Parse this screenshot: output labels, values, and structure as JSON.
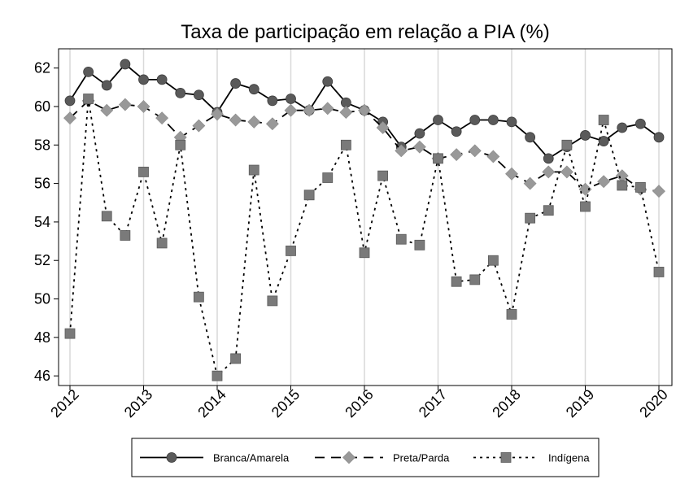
{
  "chart_data": {
    "type": "line",
    "title": "Taxa de participação em relação a PIA (%)",
    "xlabel": "",
    "ylabel": "",
    "xlim": [
      2012,
      2020
    ],
    "ylim": [
      45.5,
      63.0
    ],
    "x_ticks": [
      2012,
      2013,
      2014,
      2015,
      2016,
      2017,
      2018,
      2019,
      2020
    ],
    "x_tick_labels": [
      "2012",
      "2013",
      "2014",
      "2015",
      "2016",
      "2017",
      "2018",
      "2019",
      "2020"
    ],
    "y_ticks": [
      46,
      48,
      50,
      52,
      54,
      56,
      58,
      60,
      62
    ],
    "y_tick_labels": [
      "46",
      "48",
      "50",
      "52",
      "54",
      "56",
      "58",
      "60",
      "62"
    ],
    "grid": "vertical",
    "legend_position": "bottom",
    "x": [
      2012.0,
      2012.25,
      2012.5,
      2012.75,
      2013.0,
      2013.25,
      2013.5,
      2013.75,
      2014.0,
      2014.25,
      2014.5,
      2014.75,
      2015.0,
      2015.25,
      2015.5,
      2015.75,
      2016.0,
      2016.25,
      2016.5,
      2016.75,
      2017.0,
      2017.25,
      2017.5,
      2017.75,
      2018.0,
      2018.25,
      2018.5,
      2018.75,
      2019.0,
      2019.25,
      2019.5,
      2019.75,
      2020.0
    ],
    "series": [
      {
        "name": "Branca/Amarela",
        "marker": "circle",
        "line": "solid",
        "values": [
          60.3,
          61.8,
          61.1,
          62.2,
          61.4,
          61.4,
          60.7,
          60.6,
          59.7,
          61.2,
          60.9,
          60.3,
          60.4,
          59.8,
          61.3,
          60.2,
          59.8,
          59.2,
          57.9,
          58.6,
          59.3,
          58.7,
          59.3,
          59.3,
          59.2,
          58.4,
          57.3,
          57.9,
          58.5,
          58.2,
          58.9,
          59.1,
          58.4
        ]
      },
      {
        "name": "Preta/Parda",
        "marker": "diamond",
        "line": "dashed",
        "values": [
          59.4,
          60.3,
          59.8,
          60.1,
          60.0,
          59.4,
          58.4,
          59.0,
          59.6,
          59.3,
          59.2,
          59.1,
          59.8,
          59.8,
          59.9,
          59.7,
          59.8,
          58.9,
          57.7,
          57.9,
          57.3,
          57.5,
          57.7,
          57.4,
          56.5,
          56.0,
          56.6,
          56.6,
          55.7,
          56.1,
          56.4,
          55.7,
          55.6
        ]
      },
      {
        "name": "Indígena",
        "marker": "square",
        "line": "dotted",
        "values": [
          48.2,
          60.4,
          54.3,
          53.3,
          56.6,
          52.9,
          58.0,
          50.1,
          46.0,
          46.9,
          56.7,
          49.9,
          52.5,
          55.4,
          56.3,
          58.0,
          52.4,
          56.4,
          53.1,
          52.8,
          57.3,
          50.9,
          51.0,
          52.0,
          49.2,
          54.2,
          54.6,
          58.0,
          54.8,
          59.3,
          55.9,
          55.8,
          51.4
        ]
      }
    ]
  }
}
